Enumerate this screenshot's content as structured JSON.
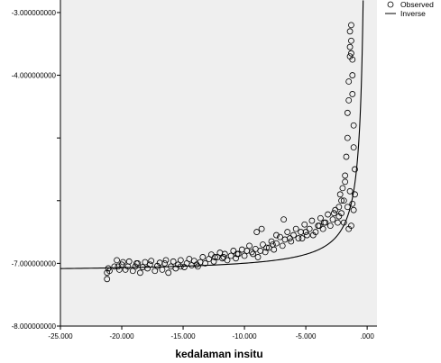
{
  "chart_data": {
    "type": "scatter",
    "title": "",
    "xlabel": "kedalaman insitu",
    "ylabel": "",
    "xlim": [
      -25,
      0.8
    ],
    "ylim": [
      -8,
      -2.8
    ],
    "x_ticks": [
      {
        "value": -25,
        "label": "-25.000"
      },
      {
        "value": -20,
        "label": "-20.000"
      },
      {
        "value": -15,
        "label": "-15.000"
      },
      {
        "value": -10,
        "label": "-10.000"
      },
      {
        "value": -5,
        "label": "-5.000"
      },
      {
        "value": 0,
        "label": ".000"
      }
    ],
    "y_ticks": [
      {
        "value": -3,
        "label": "-3.000000000",
        "labeled": true
      },
      {
        "value": -4,
        "label": "-4.000000000",
        "labeled": true
      },
      {
        "value": -5,
        "label": "",
        "labeled": false
      },
      {
        "value": -6,
        "label": "",
        "labeled": false
      },
      {
        "value": -7,
        "label": "-7.000000000",
        "labeled": true
      },
      {
        "value": -8,
        "label": "-8.000000000",
        "labeled": true
      }
    ],
    "grid": false,
    "legend_position": "top-right",
    "series": [
      {
        "name": "Observed",
        "kind": "points",
        "marker": "open-circle",
        "color": "#000000",
        "x": [
          -21.2,
          -21.2,
          -21.1,
          -21.0,
          -20.6,
          -20.4,
          -20.2,
          -20.0,
          -19.9,
          -19.7,
          -19.5,
          -19.4,
          -19.1,
          -18.9,
          -18.8,
          -18.5,
          -18.3,
          -18.1,
          -17.9,
          -17.7,
          -17.6,
          -17.3,
          -17.1,
          -16.9,
          -16.7,
          -16.5,
          -16.2,
          -16.0,
          -15.8,
          -15.6,
          -15.4,
          -15.2,
          -14.9,
          -14.7,
          -14.5,
          -14.3,
          -14.1,
          -13.8,
          -13.6,
          -13.4,
          -13.2,
          -12.9,
          -12.7,
          -12.5,
          -12.2,
          -12.0,
          -11.8,
          -11.6,
          -11.4,
          -11.1,
          -10.9,
          -10.7,
          -10.5,
          -10.2,
          -10.0,
          -9.8,
          -9.6,
          -9.3,
          -9.1,
          -8.9,
          -8.7,
          -8.5,
          -8.3,
          -8.0,
          -7.8,
          -7.6,
          -7.4,
          -7.1,
          -6.9,
          -6.7,
          -6.5,
          -6.2,
          -6.0,
          -5.8,
          -5.6,
          -5.4,
          -5.1,
          -4.9,
          -4.7,
          -4.5,
          -4.2,
          -4.0,
          -3.8,
          -3.6,
          -3.4,
          -3.2,
          -3.0,
          -2.8,
          -2.6,
          -2.4,
          -2.3,
          -2.2,
          -2.1,
          -2.0,
          -1.9,
          -1.8,
          -1.7,
          -1.6,
          -1.6,
          -1.5,
          -1.5,
          -1.4,
          -1.4,
          -1.4,
          -1.3,
          -1.3,
          -1.3,
          -1.2,
          -1.2,
          -1.2,
          -1.1,
          -1.1,
          -1.0,
          -1.0,
          -9.0,
          -8.6,
          -7.4,
          -6.8,
          -5.3,
          -4.4,
          -3.9,
          -2.7,
          -2.3,
          -1.9,
          -1.6,
          -1.5,
          -1.3,
          -1.8,
          -2.1,
          -1.4,
          -1.2,
          -1.1,
          -15.2,
          -12.4,
          -10.6,
          -8.2,
          -20.3,
          -18.7,
          -16.4,
          -13.9,
          -11.7,
          -9.4,
          -7.7,
          -6.3,
          -5.0,
          -3.5
        ],
        "y": [
          -7.25,
          -7.15,
          -7.08,
          -7.12,
          -7.05,
          -6.95,
          -7.1,
          -7.02,
          -6.98,
          -7.1,
          -7.05,
          -6.97,
          -7.12,
          -7.05,
          -7.0,
          -7.15,
          -7.06,
          -6.98,
          -7.08,
          -7.02,
          -6.96,
          -7.12,
          -7.04,
          -6.99,
          -7.1,
          -7.0,
          -7.15,
          -7.05,
          -6.97,
          -7.08,
          -7.02,
          -6.95,
          -7.06,
          -7.0,
          -6.93,
          -7.03,
          -6.96,
          -7.05,
          -6.98,
          -6.9,
          -7.0,
          -6.93,
          -6.86,
          -6.97,
          -6.9,
          -6.83,
          -6.92,
          -6.85,
          -6.95,
          -6.88,
          -6.8,
          -6.92,
          -6.85,
          -6.78,
          -6.88,
          -6.8,
          -6.72,
          -6.85,
          -6.77,
          -6.9,
          -6.8,
          -6.7,
          -6.82,
          -6.75,
          -6.65,
          -6.78,
          -6.68,
          -6.58,
          -6.72,
          -6.62,
          -6.5,
          -6.65,
          -6.55,
          -6.45,
          -6.6,
          -6.5,
          -6.38,
          -6.55,
          -6.45,
          -6.32,
          -6.5,
          -6.4,
          -6.28,
          -6.45,
          -6.35,
          -6.22,
          -6.4,
          -6.3,
          -6.15,
          -6.35,
          -6.1,
          -5.9,
          -6.2,
          -5.8,
          -6.0,
          -5.6,
          -5.3,
          -5.0,
          -4.6,
          -4.4,
          -4.1,
          -3.7,
          -3.55,
          -3.3,
          -3.45,
          -3.2,
          -3.65,
          -3.75,
          -4.0,
          -4.3,
          -5.15,
          -4.8,
          -5.5,
          -5.9,
          -6.5,
          -6.45,
          -6.55,
          -6.3,
          -6.6,
          -6.55,
          -6.4,
          -6.2,
          -6.25,
          -6.35,
          -6.1,
          -6.45,
          -6.4,
          -5.7,
          -6.0,
          -5.85,
          -6.05,
          -6.15,
          -7.05,
          -6.9,
          -6.85,
          -6.75,
          -7.05,
          -7.0,
          -6.95,
          -7.02,
          -6.9,
          -6.82,
          -6.7,
          -6.6,
          -6.5,
          -6.35
        ]
      },
      {
        "name": "Inverse",
        "kind": "line",
        "color": "#000000",
        "model": "y = b0 + b1/x",
        "b0": -7.14,
        "b1": -1.42,
        "x_from": -25,
        "x_to": -0.3
      }
    ]
  }
}
